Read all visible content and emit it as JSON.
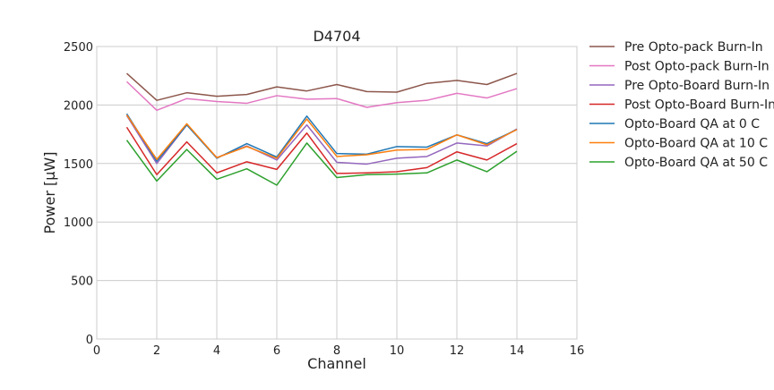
{
  "chart_data": {
    "type": "line",
    "title": "D4704",
    "xlabel": "Channel",
    "ylabel": "Power [μW]",
    "xlim": [
      0,
      16
    ],
    "ylim": [
      0,
      2500
    ],
    "xticks": [
      0,
      2,
      4,
      6,
      8,
      10,
      12,
      14,
      16
    ],
    "yticks": [
      0,
      500,
      1000,
      1500,
      2000,
      2500
    ],
    "grid": true,
    "legend_position": "outside-right-top",
    "x": [
      1,
      2,
      3,
      4,
      5,
      6,
      7,
      8,
      9,
      10,
      11,
      12,
      13,
      14
    ],
    "series": [
      {
        "name": "Pre Opto-pack Burn-In",
        "color": "#8c564b",
        "values": [
          2270,
          2040,
          2105,
          2075,
          2090,
          2155,
          2120,
          2175,
          2115,
          2110,
          2185,
          2210,
          2175,
          2270
        ]
      },
      {
        "name": "Post Opto-pack Burn-In",
        "color": "#e377c2",
        "values": [
          2200,
          1955,
          2055,
          2030,
          2015,
          2080,
          2050,
          2055,
          1980,
          2020,
          2040,
          2100,
          2060,
          2140
        ]
      },
      {
        "name": "Pre Opto-Board Burn-In",
        "color": "#9467bd",
        "values": [
          1910,
          1500,
          1830,
          1550,
          1650,
          1530,
          1830,
          1510,
          1495,
          1545,
          1560,
          1675,
          1650,
          1795
        ]
      },
      {
        "name": "Post Opto-Board Burn-In",
        "color": "#d62728",
        "values": [
          1810,
          1405,
          1685,
          1420,
          1515,
          1450,
          1760,
          1415,
          1420,
          1430,
          1465,
          1600,
          1530,
          1670
        ]
      },
      {
        "name": "Opto-Board QA at 0 C",
        "color": "#1f77b4",
        "values": [
          1925,
          1520,
          1830,
          1545,
          1670,
          1555,
          1905,
          1585,
          1580,
          1645,
          1640,
          1745,
          1670,
          1790
        ]
      },
      {
        "name": "Opto-Board QA at 10 C",
        "color": "#ff7f0e",
        "values": [
          1915,
          1535,
          1840,
          1550,
          1645,
          1545,
          1880,
          1560,
          1575,
          1615,
          1620,
          1745,
          1660,
          1790
        ]
      },
      {
        "name": "Opto-Board QA at 50 C",
        "color": "#2ca02c",
        "values": [
          1700,
          1350,
          1620,
          1365,
          1455,
          1315,
          1675,
          1380,
          1405,
          1410,
          1420,
          1530,
          1430,
          1605
        ]
      }
    ]
  }
}
